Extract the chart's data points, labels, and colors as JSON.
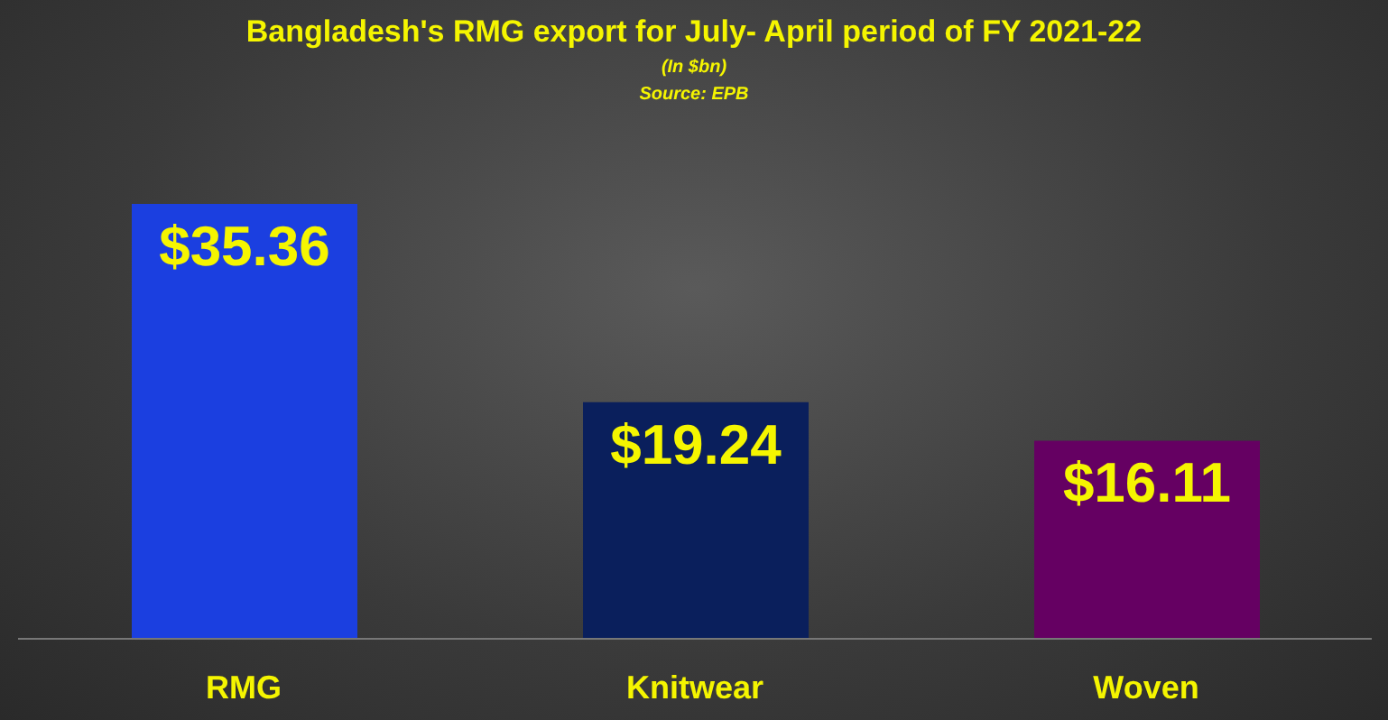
{
  "chart_data": {
    "type": "bar",
    "title": "Bangladesh's RMG export for July- April period of FY 2021-22",
    "subtitle": "(In $bn)",
    "annotations": [
      "Source: EPB"
    ],
    "categories": [
      "RMG",
      "Knitwear",
      "Woven"
    ],
    "values": [
      35.36,
      19.24,
      16.11
    ],
    "colors": [
      "#1b3fe0",
      "#0a1f5c",
      "#650062"
    ],
    "value_labels": [
      "$35.36",
      "$19.24",
      "$16.11"
    ],
    "tick_labels": "x"
  }
}
